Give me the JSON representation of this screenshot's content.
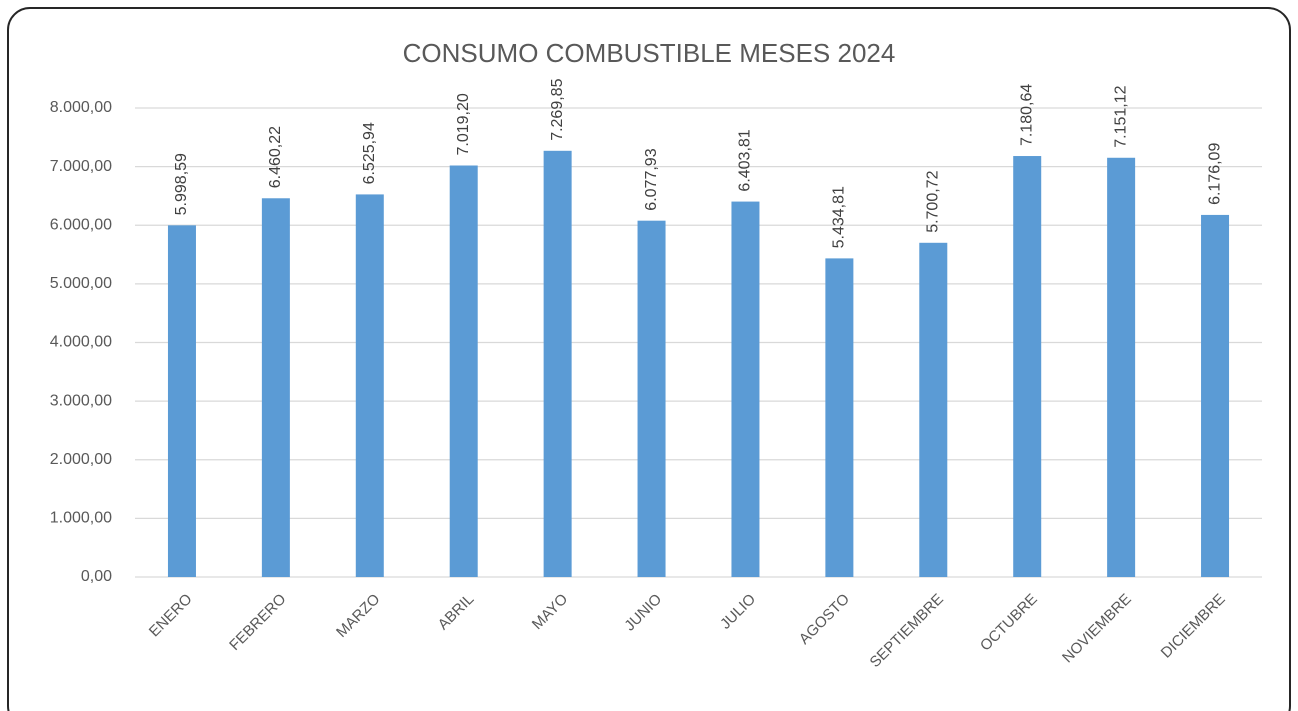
{
  "chart_data": {
    "type": "bar",
    "title": "CONSUMO COMBUSTIBLE MESES 2024",
    "categories": [
      "ENERO",
      "FEBRERO",
      "MARZO",
      "ABRIL",
      "MAYO",
      "JUNIO",
      "JULIO",
      "AGOSTO",
      "SEPTIEMBRE",
      "OCTUBRE",
      "NOVIEMBRE",
      "DICIEMBRE"
    ],
    "values": [
      5998.59,
      6460.22,
      6525.94,
      7019.2,
      7269.85,
      6077.93,
      6403.81,
      5434.81,
      5700.72,
      7180.64,
      7151.12,
      6176.09
    ],
    "value_labels": [
      "5.998,59",
      "6.460,22",
      "6.525,94",
      "7.019,20",
      "7.269,85",
      "6.077,93",
      "6.403,81",
      "5.434,81",
      "5.700,72",
      "7.180,64",
      "7.151,12",
      "6.176,09"
    ],
    "color": "#5b9bd5",
    "ylim": [
      0,
      8000
    ],
    "yticks": [
      {
        "value": 0,
        "label": "0,00"
      },
      {
        "value": 1000,
        "label": "1.000,00"
      },
      {
        "value": 2000,
        "label": "2.000,00"
      },
      {
        "value": 3000,
        "label": "3.000,00"
      },
      {
        "value": 4000,
        "label": "4.000,00"
      },
      {
        "value": 5000,
        "label": "5.000,00"
      },
      {
        "value": 6000,
        "label": "6.000,00"
      },
      {
        "value": 7000,
        "label": "7.000,00"
      },
      {
        "value": 8000,
        "label": "8.000,00"
      }
    ],
    "grid": true
  }
}
